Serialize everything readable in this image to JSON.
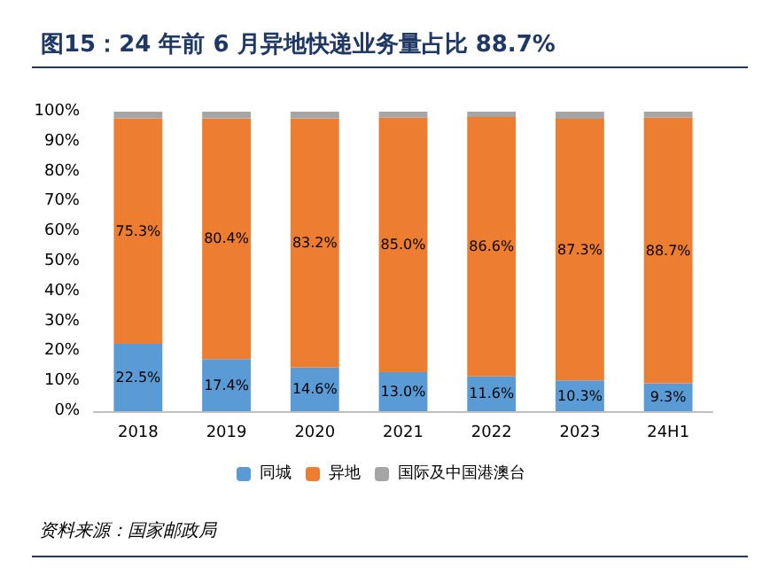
{
  "chart_data": {
    "type": "bar",
    "title": "图15：24 年前 6 月异地快递业务量占比 88.7%",
    "categories": [
      "2018",
      "2019",
      "2020",
      "2021",
      "2022",
      "2023",
      "24H1"
    ],
    "stacked": true,
    "series": [
      {
        "name": "同城",
        "color": "#5b9bd5",
        "values": [
          22.5,
          17.4,
          14.6,
          13.0,
          11.6,
          10.3,
          9.3
        ],
        "value_labels": [
          "22.5%",
          "17.4%",
          "14.6%",
          "13.0%",
          "11.6%",
          "10.3%",
          "9.3%"
        ]
      },
      {
        "name": "异地",
        "color": "#ed7d31",
        "values": [
          75.3,
          80.4,
          83.2,
          85.0,
          86.6,
          87.3,
          88.7
        ],
        "value_labels": [
          "75.3%",
          "80.4%",
          "83.2%",
          "85.0%",
          "86.6%",
          "87.3%",
          "88.7%"
        ]
      },
      {
        "name": "国际及中国港澳台",
        "color": "#a5a5a5",
        "values": [
          2.2,
          2.2,
          2.2,
          2.0,
          1.8,
          2.4,
          2.0
        ]
      }
    ],
    "ylim": [
      0,
      100
    ],
    "yticks": [
      {
        "value": 0,
        "label": "0%"
      },
      {
        "value": 10,
        "label": "10%"
      },
      {
        "value": 20,
        "label": "20%"
      },
      {
        "value": 30,
        "label": "30%"
      },
      {
        "value": 40,
        "label": "40%"
      },
      {
        "value": 50,
        "label": "50%"
      },
      {
        "value": 60,
        "label": "60%"
      },
      {
        "value": 70,
        "label": "70%"
      },
      {
        "value": 80,
        "label": "80%"
      },
      {
        "value": 90,
        "label": "90%"
      },
      {
        "value": 100,
        "label": "100%"
      }
    ],
    "grid": false,
    "legend": "bottom",
    "annotations": [
      "资料来源：国家邮政局"
    ]
  }
}
